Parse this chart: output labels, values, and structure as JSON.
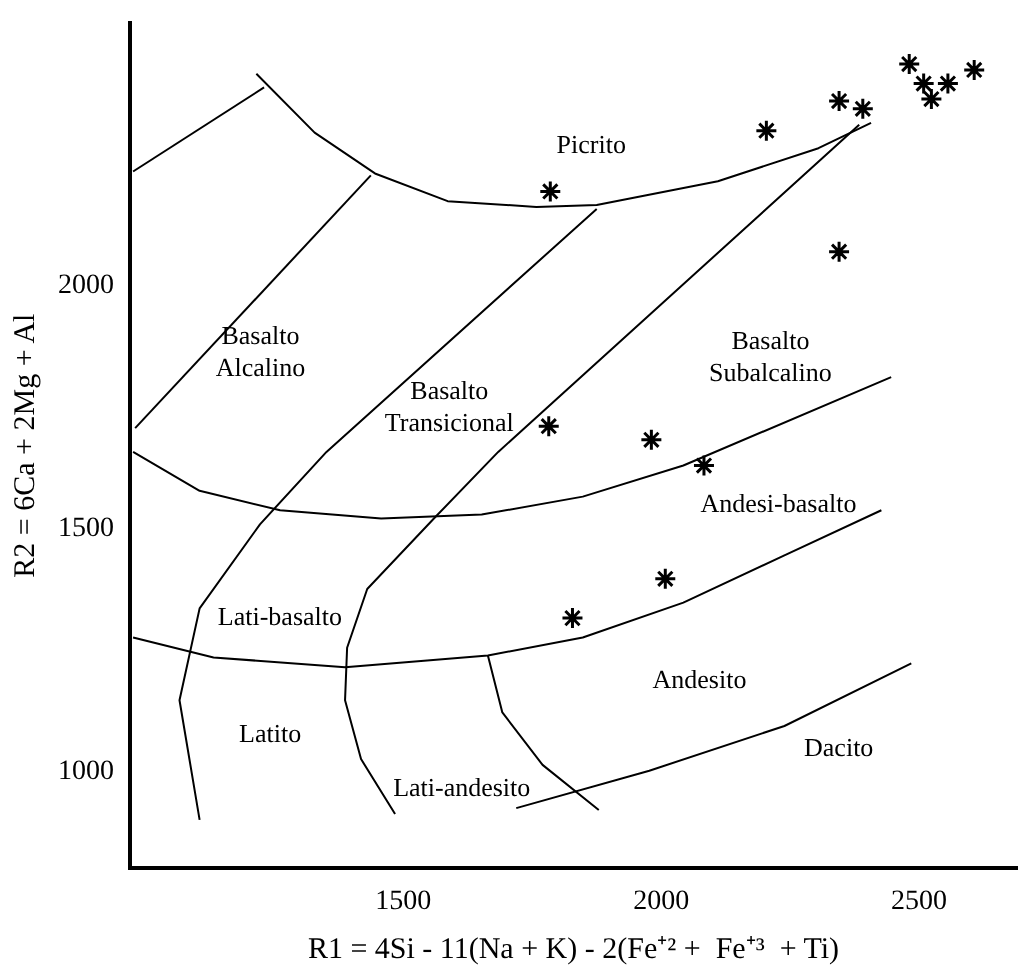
{
  "chart_data": {
    "type": "scatter",
    "xlabel": "R1 = 4Si - 11(Na + K) - 2(Fe⁺² +  Fe⁺³  + Ti)",
    "ylabel": "R2 = 6Ca + 2Mg + Al",
    "xlim": [
      970,
      2690
    ],
    "ylim": [
      800,
      2540
    ],
    "xticks": [
      1500,
      2000,
      2500
    ],
    "yticks": [
      1000,
      1500,
      2000
    ],
    "grid": false,
    "legend": false,
    "series": [
      {
        "type": "scatter",
        "color": "#000000",
        "marker": "cross",
        "x": [
          2481,
          2509,
          2556,
          2607,
          2524,
          2345,
          2391,
          2204,
          1785,
          2345,
          1782,
          1981,
          2083,
          2008,
          1828
        ],
        "values": [
          2455,
          2415,
          2415,
          2443,
          2383,
          2379,
          2363,
          2318,
          2193,
          2069,
          1710,
          1682,
          1629,
          1396,
          1315
        ]
      },
      {
        "type": "line",
        "color": "#000000",
        "marker": "none",
        "x": [
          1215,
          1328,
          1445,
          1586,
          1758,
          1875,
          2110,
          2305,
          2407
        ],
        "values": [
          2435,
          2314,
          2230,
          2173,
          2161,
          2165,
          2214,
          2282,
          2334
        ]
      },
      {
        "type": "line",
        "color": "#000000",
        "marker": "none",
        "x": [
          976,
          1230
        ],
        "values": [
          2234,
          2407
        ]
      },
      {
        "type": "line",
        "color": "#000000",
        "marker": "none",
        "x": [
          1437,
          980
        ],
        "values": [
          2226,
          1706
        ]
      },
      {
        "type": "line",
        "color": "#000000",
        "marker": "none",
        "x": [
          1875,
          1351,
          1222,
          1105,
          1066,
          1105
        ],
        "values": [
          2157,
          1657,
          1508,
          1335,
          1146,
          900
        ]
      },
      {
        "type": "line",
        "color": "#000000",
        "marker": "none",
        "x": [
          2384,
          1684,
          1563,
          1430,
          1391,
          1387,
          1418,
          1484
        ],
        "values": [
          2330,
          1657,
          1524,
          1375,
          1254,
          1146,
          1025,
          912
        ]
      },
      {
        "type": "line",
        "color": "#000000",
        "marker": "none",
        "x": [
          976,
          1105,
          1261,
          1457,
          1652,
          1848,
          2043,
          2446
        ],
        "values": [
          1657,
          1577,
          1537,
          1520,
          1528,
          1565,
          1629,
          1811
        ]
      },
      {
        "type": "line",
        "color": "#000000",
        "marker": "none",
        "x": [
          976,
          1132,
          1387,
          1664,
          1848,
          2043,
          2239,
          2427
        ],
        "values": [
          1275,
          1234,
          1214,
          1238,
          1275,
          1347,
          1444,
          1537
        ]
      },
      {
        "type": "line",
        "color": "#000000",
        "marker": "none",
        "x": [
          1664,
          1692,
          1770,
          1879
        ],
        "values": [
          1238,
          1121,
          1013,
          920
        ]
      },
      {
        "type": "line",
        "color": "#000000",
        "marker": "none",
        "x": [
          1719,
          1977,
          2239,
          2485
        ],
        "values": [
          924,
          1001,
          1093,
          1222
        ]
      }
    ],
    "annotations": [
      "Picrito",
      "Basalto\nAlcalino",
      "Basalto\nTransicional",
      "Basalto\nSubalcalino",
      "Andesi-basalto",
      "Lati-basalto",
      "Andesito",
      "Latito",
      "Lati-andesito",
      "Dacito"
    ]
  }
}
